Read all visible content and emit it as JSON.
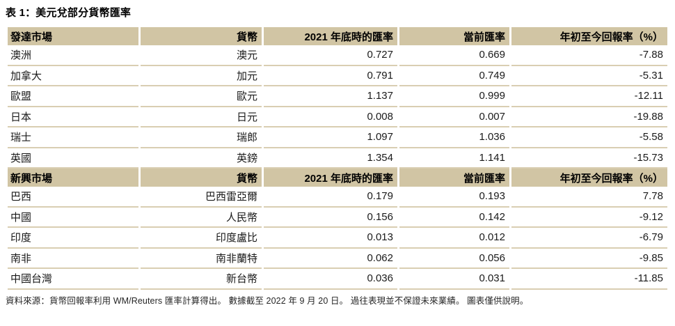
{
  "chart_data": {
    "type": "table",
    "title": "表 1：美元兌部分貨幣匯率",
    "column_keys": [
      "market",
      "currency",
      "rate-end-2021",
      "current-rate",
      "ytd-return"
    ],
    "sections": [
      {
        "name": "developed-markets",
        "columns": [
          "發達市場",
          "貨幣",
          "2021 年底時的匯率",
          "當前匯率",
          "年初至今回報率（%）"
        ],
        "rows": [
          [
            "澳洲",
            "澳元",
            "0.727",
            "0.669",
            "-7.88"
          ],
          [
            "加拿大",
            "加元",
            "0.791",
            "0.749",
            "-5.31"
          ],
          [
            "歐盟",
            "歐元",
            "1.137",
            "0.999",
            "-12.11"
          ],
          [
            "日本",
            "日元",
            "0.008",
            "0.007",
            "-19.88"
          ],
          [
            "瑞士",
            "瑞郎",
            "1.097",
            "1.036",
            "-5.58"
          ],
          [
            "英國",
            "英鎊",
            "1.354",
            "1.141",
            "-15.73"
          ]
        ]
      },
      {
        "name": "emerging-markets",
        "columns": [
          "新興市場",
          "貨幣",
          "2021 年底時的匯率",
          "當前匯率",
          "年初至今回報率（%）"
        ],
        "rows": [
          [
            "巴西",
            "巴西雷亞爾",
            "0.179",
            "0.193",
            "7.78"
          ],
          [
            "中國",
            "人民幣",
            "0.156",
            "0.142",
            "-9.12"
          ],
          [
            "印度",
            "印度盧比",
            "0.013",
            "0.012",
            "-6.79"
          ],
          [
            "南非",
            "南非蘭特",
            "0.062",
            "0.056",
            "-9.85"
          ],
          [
            "中國台灣",
            "新台幣",
            "0.036",
            "0.031",
            "-11.85"
          ]
        ]
      }
    ],
    "source_note": "資料來源：貨幣回報率利用 WM/Reuters 匯率計算得出。 數據截至 2022 年 9 月 20 日。 過往表現並不保證未來業績。 圖表僅供說明。",
    "colors": {
      "header_bg": "#d1c5a4",
      "row_line": "#d9ceb2",
      "text": "#1a1a1a"
    }
  }
}
